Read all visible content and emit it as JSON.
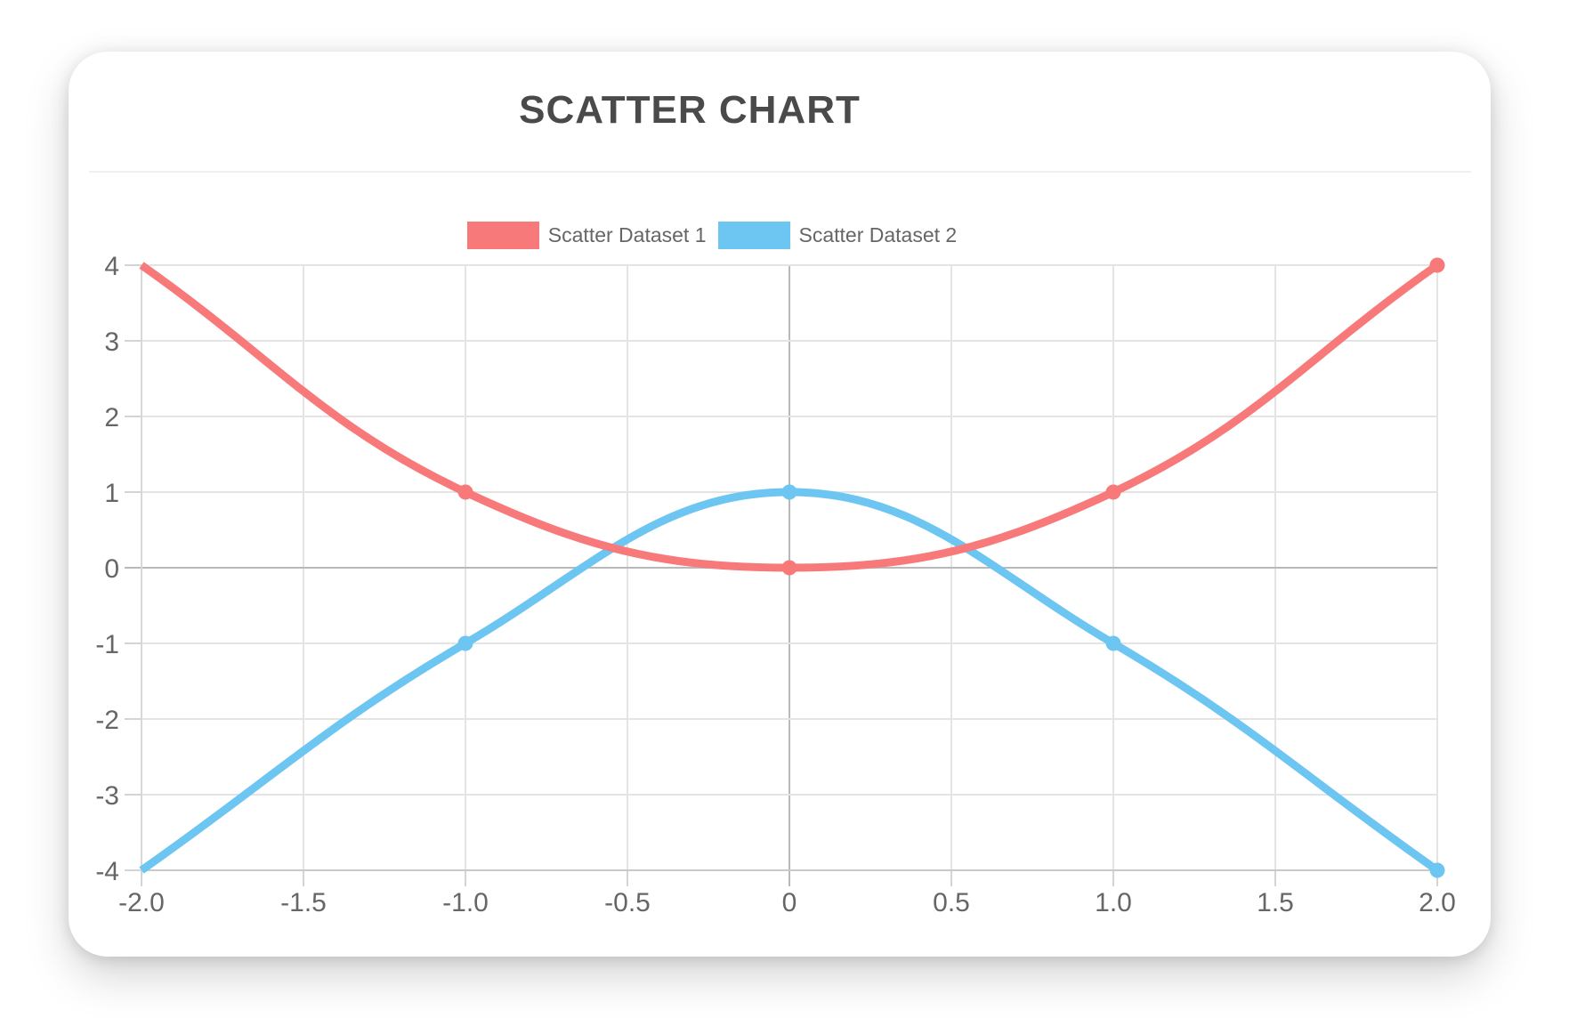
{
  "title": "SCATTER CHART",
  "legend": [
    {
      "label": "Scatter Dataset 1",
      "color": "#f87979"
    },
    {
      "label": "Scatter Dataset 2",
      "color": "#6dc5f1"
    }
  ],
  "chart_data": {
    "type": "scatter",
    "title": "SCATTER CHART",
    "series": [
      {
        "name": "Scatter Dataset 1",
        "color": "#f87979",
        "points": [
          [
            -2,
            4
          ],
          [
            -1,
            1
          ],
          [
            0,
            0
          ],
          [
            1,
            1
          ],
          [
            2,
            4
          ]
        ]
      },
      {
        "name": "Scatter Dataset 2",
        "color": "#6dc5f1",
        "points": [
          [
            -2,
            -4
          ],
          [
            -1,
            -1
          ],
          [
            0,
            1
          ],
          [
            1,
            -1
          ],
          [
            2,
            -4
          ]
        ]
      }
    ],
    "xlim": [
      -2,
      2
    ],
    "ylim": [
      -4,
      4
    ],
    "x_tick_values": [
      -2,
      -1.5,
      -1,
      -0.5,
      0,
      0.5,
      1,
      1.5,
      2
    ],
    "x_tick_labels": [
      "-2.0",
      "-1.5",
      "-1.0",
      "-0.5",
      "0",
      "0.5",
      "1.0",
      "1.5",
      "2.0"
    ],
    "y_tick_values": [
      4,
      3,
      2,
      1,
      0,
      -1,
      -2,
      -3,
      -4
    ],
    "y_tick_labels": [
      "4",
      "3",
      "2",
      "1",
      "0",
      "-1",
      "-2",
      "-3",
      "-4"
    ],
    "grid": true,
    "legend_position": "top",
    "line_tension": 0.4,
    "line_width": 9,
    "point_radius": 8.5,
    "markers": "all-points-except-first"
  },
  "style": {
    "title_color": "#4a4a4a",
    "tick_label_color": "#666666",
    "legend_text_color": "#666666",
    "grid_color": "#e4e4e4",
    "zero_line_color": "#b9b9b9",
    "x_axis_line_color": "#c9c9c9",
    "y_axis_line_color": "#d8d8d8",
    "tick_mark_color": "#d4d4d4",
    "card_background": "#ffffff",
    "page_background": "#ffffff"
  }
}
